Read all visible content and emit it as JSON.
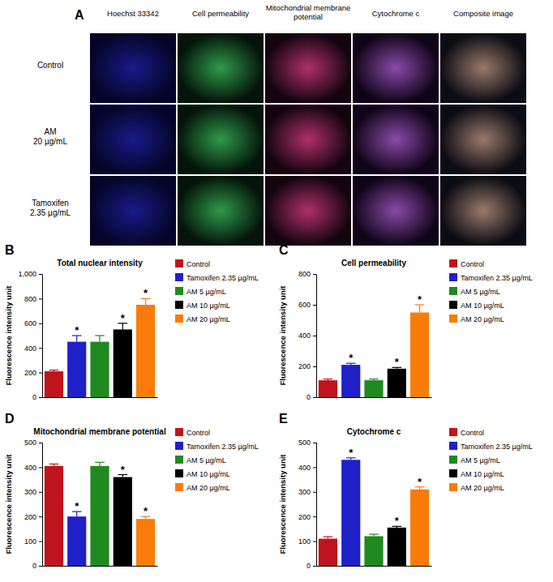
{
  "image_panel": {
    "label": "A",
    "columns": [
      "Hoechst 33342",
      "Cell permeability",
      "Mitochondrial membrane potential",
      "Cytochrome c",
      "Composite image"
    ],
    "rows": [
      "Control",
      "AM 20 µg/mL",
      "Tamoxifen 2.35 µg/mL"
    ]
  },
  "chart_data": [
    {
      "type": "bar",
      "annotation": "B",
      "title": "Total nuclear intensity",
      "y_label": "Fluorescence intensity unit",
      "categories": [
        "Control",
        "Tamoxifen 2.35 µg/mL",
        "AM 5 µg/mL",
        "AM 10 µg/mL",
        "AM 20 µg/mL"
      ],
      "values": [
        210,
        450,
        450,
        550,
        750
      ],
      "errors": [
        10,
        50,
        50,
        50,
        50
      ],
      "significance": [
        null,
        "*",
        null,
        "*",
        "*"
      ],
      "colors": [
        "#c0141c",
        "#2020c8",
        "#1f8a1f",
        "#000000",
        "#f97c0a"
      ],
      "ylim": [
        0,
        1000
      ],
      "yticks": [
        0,
        200,
        400,
        600,
        800,
        {
          "value": 1000,
          "label": "1,000"
        }
      ],
      "legend": "right",
      "tick_labels": "y"
    },
    {
      "type": "bar",
      "annotation": "C",
      "title": "Cell permeability",
      "y_label": "Fluorescence intensity unit",
      "categories": [
        "Control",
        "Tamoxifen 2.35 µg/mL",
        "AM 5 µg/mL",
        "AM 10 µg/mL",
        "AM 20 µg/mL"
      ],
      "values": [
        110,
        210,
        110,
        185,
        550
      ],
      "errors": [
        8,
        10,
        8,
        8,
        50
      ],
      "significance": [
        null,
        "*",
        null,
        "*",
        "*"
      ],
      "colors": [
        "#c0141c",
        "#2020c8",
        "#1f8a1f",
        "#000000",
        "#f97c0a"
      ],
      "ylim": [
        0,
        800
      ],
      "yticks": [
        0,
        200,
        400,
        600,
        800
      ],
      "legend": "right",
      "tick_labels": "y"
    },
    {
      "type": "bar",
      "annotation": "D",
      "title": "Mitochondrial membrane potential",
      "y_label": "Fluorescence intensity unit",
      "categories": [
        "Control",
        "Tamoxifen 2.35 µg/mL",
        "AM 5 µg/mL",
        "AM 10 µg/mL",
        "AM 20 µg/mL"
      ],
      "values": [
        405,
        200,
        405,
        360,
        190
      ],
      "errors": [
        8,
        20,
        15,
        10,
        10
      ],
      "significance": [
        null,
        "*",
        null,
        "*",
        "*"
      ],
      "colors": [
        "#c0141c",
        "#2020c8",
        "#1f8a1f",
        "#000000",
        "#f97c0a"
      ],
      "ylim": [
        0,
        500
      ],
      "yticks": [
        0,
        100,
        200,
        300,
        400,
        500
      ],
      "legend": "right",
      "tick_labels": "y"
    },
    {
      "type": "bar",
      "annotation": "E",
      "title": "Cytochrome c",
      "y_label": "Fluorescence intensity unit",
      "categories": [
        "Control",
        "Tamoxifen 2.35 µg/mL",
        "AM 5 µg/mL",
        "AM 10 µg/mL",
        "AM 20 µg/mL"
      ],
      "values": [
        110,
        430,
        120,
        155,
        310
      ],
      "errors": [
        8,
        8,
        8,
        5,
        10
      ],
      "significance": [
        null,
        "*",
        null,
        "*",
        "*"
      ],
      "colors": [
        "#c0141c",
        "#2020c8",
        "#1f8a1f",
        "#000000",
        "#f97c0a"
      ],
      "ylim": [
        0,
        500
      ],
      "yticks": [
        0,
        100,
        200,
        300,
        400,
        500
      ],
      "legend": "right",
      "tick_labels": "y"
    }
  ]
}
